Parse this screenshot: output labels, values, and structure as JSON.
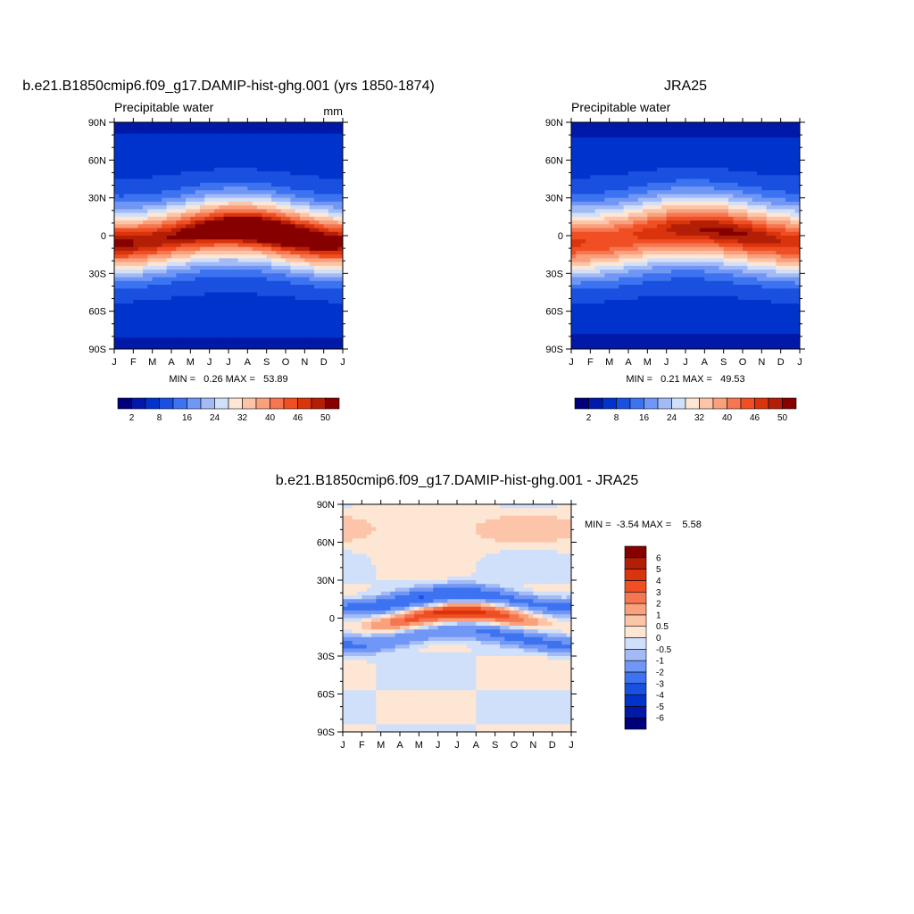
{
  "chart_data": [
    {
      "type": "heatmap",
      "title": "b.e21.B1850cmip6.f09_g17.DAMIP-hist-ghg.001 (yrs 1850-1874)",
      "subtitle": "Precipitable water",
      "units": "mm",
      "x_tick_labels": [
        "J",
        "F",
        "M",
        "A",
        "M",
        "J",
        "J",
        "A",
        "S",
        "O",
        "N",
        "D",
        "J"
      ],
      "y_tick_labels": [
        "90N",
        "60N",
        "30N",
        "0",
        "30S",
        "60S",
        "90S"
      ],
      "xlim": [
        1,
        13
      ],
      "ylim": [
        -90,
        90
      ],
      "stats_text": "MIN =   0.26 MAX =   53.89",
      "min": 0.26,
      "max": 53.89,
      "contour_levels": [
        2,
        5,
        8,
        12,
        16,
        20,
        24,
        28,
        32,
        36,
        40,
        43,
        46,
        48,
        50
      ],
      "colorbar_tick_labels": [
        "2",
        "8",
        "16",
        "24",
        "32",
        "40",
        "46",
        "50"
      ],
      "colorbar_orientation": "horizontal",
      "field_description": "zonal-mean precipitable water vs month and latitude; tropical maximum ~53 mm shifting north in boreal summer, near 0 at poles"
    },
    {
      "type": "heatmap",
      "title": "JRA25",
      "subtitle": "Precipitable water",
      "x_tick_labels": [
        "J",
        "F",
        "M",
        "A",
        "M",
        "J",
        "J",
        "A",
        "S",
        "O",
        "N",
        "D",
        "J"
      ],
      "y_tick_labels": [
        "90N",
        "60N",
        "30N",
        "0",
        "30S",
        "60S",
        "90S"
      ],
      "xlim": [
        1,
        13
      ],
      "ylim": [
        -90,
        90
      ],
      "stats_text": "MIN =   0.21 MAX =   49.53",
      "min": 0.21,
      "max": 49.53,
      "contour_levels": [
        2,
        5,
        8,
        12,
        16,
        20,
        24,
        28,
        32,
        36,
        40,
        43,
        46,
        48,
        50
      ],
      "colorbar_tick_labels": [
        "2",
        "8",
        "16",
        "24",
        "32",
        "40",
        "46",
        "50"
      ],
      "colorbar_orientation": "horizontal"
    },
    {
      "type": "heatmap",
      "title": "b.e21.B1850cmip6.f09_g17.DAMIP-hist-ghg.001 - JRA25",
      "x_tick_labels": [
        "J",
        "F",
        "M",
        "A",
        "M",
        "J",
        "J",
        "A",
        "S",
        "O",
        "N",
        "D",
        "J"
      ],
      "y_tick_labels": [
        "90N",
        "60N",
        "30N",
        "0",
        "30S",
        "60S",
        "90S"
      ],
      "xlim": [
        1,
        13
      ],
      "ylim": [
        -90,
        90
      ],
      "stats_text": "MIN =  -3.54 MAX =    5.58",
      "min": -3.54,
      "max": 5.58,
      "contour_levels": [
        -6,
        -5,
        -4,
        -3,
        -2,
        -1,
        -0.5,
        0,
        0.5,
        1,
        2,
        3,
        4,
        5,
        6
      ],
      "colorbar_tick_labels": [
        "-6",
        "-5",
        "-4",
        "-3",
        "-2",
        "-1",
        "-0.5",
        "0",
        "0.5",
        "1",
        "2",
        "3",
        "4",
        "5",
        "6"
      ],
      "colorbar_orientation": "vertical"
    }
  ],
  "colors": {
    "palette_16": [
      "#00007a",
      "#0019a8",
      "#0033cc",
      "#1a50e0",
      "#3d73f0",
      "#7097f5",
      "#a3baf5",
      "#d1e0fa",
      "#fde6d4",
      "#fcc4a8",
      "#f9a07c",
      "#f57650",
      "#f04e23",
      "#d9340b",
      "#b31e07",
      "#870000"
    ]
  }
}
